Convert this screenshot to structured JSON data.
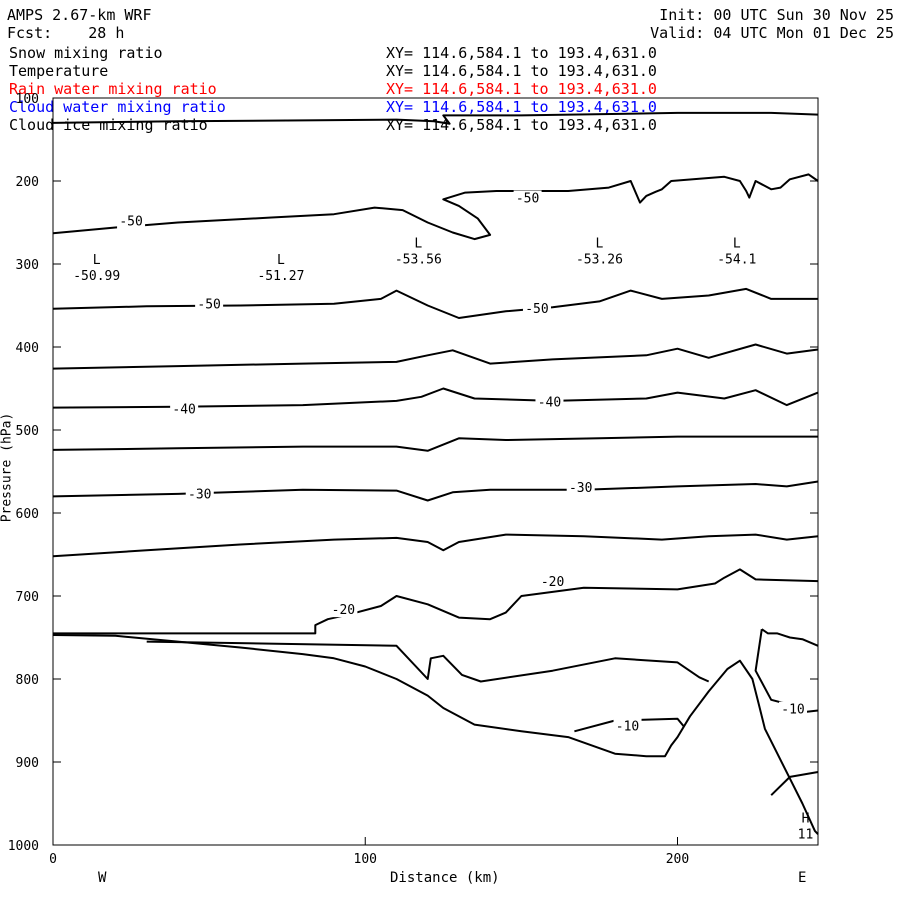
{
  "header": {
    "model": "AMPS 2.67-km WRF",
    "forecast": "Fcst:    28 h",
    "init": "Init: 00 UTC Sun 30 Nov 25",
    "valid": "Valid: 04 UTC Mon 01 Dec 25"
  },
  "layers": [
    {
      "name": "Snow mixing ratio",
      "xy": "XY= 114.6,584.1 to 193.4,631.0",
      "color": "#000000"
    },
    {
      "name": "Temperature",
      "xy": "XY= 114.6,584.1 to 193.4,631.0",
      "color": "#000000"
    },
    {
      "name": "Rain water mixing ratio",
      "xy": "XY= 114.6,584.1 to 193.4,631.0",
      "color": "#ff0000"
    },
    {
      "name": "Cloud water mixing ratio",
      "xy": "XY= 114.6,584.1 to 193.4,631.0",
      "color": "#0000ff"
    },
    {
      "name": "Cloud ice mixing ratio",
      "xy": "XY= 114.6,584.1 to 193.4,631.0",
      "color": "#000000"
    }
  ],
  "axes": {
    "xlabel": "Distance (km)",
    "ylabel": "Pressure (hPa)",
    "west": "W",
    "east": "E"
  },
  "chart_data": {
    "type": "line",
    "xlim": [
      0,
      245
    ],
    "ylim": [
      1000,
      100
    ],
    "x_ticks": [
      0,
      100,
      200
    ],
    "y_ticks": [
      100,
      200,
      300,
      400,
      500,
      600,
      700,
      800,
      900,
      1000
    ],
    "grid": false,
    "contour_labels": [
      {
        "text": "-50",
        "x": 25,
        "p": 249
      },
      {
        "text": "-50",
        "x": 152,
        "p": 221
      },
      {
        "text": "-50",
        "x": 50,
        "p": 349
      },
      {
        "text": "-50",
        "x": 155,
        "p": 354
      },
      {
        "text": "-40",
        "x": 42,
        "p": 475
      },
      {
        "text": "-40",
        "x": 159,
        "p": 467
      },
      {
        "text": "-30",
        "x": 47,
        "p": 578
      },
      {
        "text": "-30",
        "x": 169,
        "p": 570
      },
      {
        "text": "-20",
        "x": 93,
        "p": 717
      },
      {
        "text": "-20",
        "x": 160,
        "p": 683
      },
      {
        "text": "-10",
        "x": 184,
        "p": 857
      },
      {
        "text": "-10",
        "x": 237,
        "p": 837
      }
    ],
    "extrema": [
      {
        "type": "L",
        "value": "-50.99",
        "x": 14,
        "p": 312
      },
      {
        "type": "L",
        "value": "-51.27",
        "x": 73,
        "p": 312
      },
      {
        "type": "L",
        "value": "-53.56",
        "x": 117,
        "p": 292
      },
      {
        "type": "L",
        "value": "-53.26",
        "x": 175,
        "p": 292
      },
      {
        "type": "L",
        "value": "-54.1",
        "x": 219,
        "p": 292
      },
      {
        "type": "H",
        "value": "11",
        "x": 241,
        "p": 985
      }
    ],
    "series": [
      {
        "values": [
          [
            0,
            130
          ],
          [
            40,
            128
          ],
          [
            80,
            127
          ],
          [
            110,
            126
          ],
          [
            122,
            128
          ],
          [
            127,
            131
          ],
          [
            125,
            121
          ],
          [
            150,
            121
          ],
          [
            200,
            118
          ],
          [
            230,
            118
          ],
          [
            245,
            120
          ]
        ]
      },
      {
        "values": [
          [
            0,
            263
          ],
          [
            20,
            256
          ],
          [
            40,
            250
          ],
          [
            70,
            244
          ],
          [
            90,
            240
          ],
          [
            103,
            232
          ],
          [
            112,
            235
          ],
          [
            120,
            250
          ],
          [
            128,
            262
          ],
          [
            135,
            270
          ],
          [
            140,
            265
          ],
          [
            136,
            245
          ],
          [
            130,
            230
          ],
          [
            125,
            222
          ],
          [
            132,
            214
          ],
          [
            142,
            212
          ],
          [
            165,
            212
          ],
          [
            178,
            208
          ],
          [
            185,
            200
          ],
          [
            188,
            226
          ],
          [
            190,
            218
          ],
          [
            193,
            213
          ],
          [
            195,
            210
          ],
          [
            198,
            200
          ],
          [
            205,
            198
          ],
          [
            215,
            195
          ],
          [
            220,
            200
          ],
          [
            222,
            212
          ],
          [
            223,
            220
          ],
          [
            225,
            200
          ],
          [
            230,
            210
          ],
          [
            233,
            208
          ],
          [
            236,
            198
          ],
          [
            242,
            192
          ],
          [
            245,
            200
          ]
        ]
      },
      {
        "values": [
          [
            0,
            354
          ],
          [
            30,
            351
          ],
          [
            60,
            350
          ],
          [
            90,
            348
          ],
          [
            105,
            342
          ],
          [
            110,
            332
          ],
          [
            120,
            350
          ],
          [
            130,
            365
          ],
          [
            145,
            357
          ],
          [
            160,
            352
          ],
          [
            175,
            345
          ],
          [
            185,
            332
          ],
          [
            195,
            342
          ],
          [
            210,
            338
          ],
          [
            222,
            330
          ],
          [
            230,
            342
          ],
          [
            245,
            342
          ]
        ]
      },
      {
        "values": [
          [
            0,
            426
          ],
          [
            40,
            423
          ],
          [
            80,
            420
          ],
          [
            110,
            418
          ],
          [
            120,
            410
          ],
          [
            128,
            404
          ],
          [
            140,
            420
          ],
          [
            160,
            415
          ],
          [
            190,
            410
          ],
          [
            200,
            402
          ],
          [
            210,
            413
          ],
          [
            225,
            397
          ],
          [
            235,
            408
          ],
          [
            245,
            403
          ]
        ]
      },
      {
        "values": [
          [
            0,
            473
          ],
          [
            40,
            472
          ],
          [
            80,
            470
          ],
          [
            110,
            465
          ],
          [
            118,
            460
          ],
          [
            125,
            450
          ],
          [
            135,
            462
          ],
          [
            160,
            465
          ],
          [
            190,
            462
          ],
          [
            200,
            455
          ],
          [
            215,
            462
          ],
          [
            225,
            452
          ],
          [
            235,
            470
          ],
          [
            245,
            455
          ]
        ]
      },
      {
        "values": [
          [
            0,
            524
          ],
          [
            40,
            522
          ],
          [
            80,
            520
          ],
          [
            110,
            520
          ],
          [
            120,
            525
          ],
          [
            130,
            510
          ],
          [
            145,
            512
          ],
          [
            175,
            510
          ],
          [
            200,
            508
          ],
          [
            230,
            508
          ],
          [
            245,
            508
          ]
        ]
      },
      {
        "values": [
          [
            0,
            580
          ],
          [
            40,
            577
          ],
          [
            80,
            572
          ],
          [
            110,
            573
          ],
          [
            120,
            585
          ],
          [
            128,
            575
          ],
          [
            140,
            572
          ],
          [
            170,
            572
          ],
          [
            200,
            568
          ],
          [
            225,
            565
          ],
          [
            235,
            568
          ],
          [
            245,
            562
          ]
        ]
      },
      {
        "values": [
          [
            0,
            652
          ],
          [
            30,
            645
          ],
          [
            60,
            638
          ],
          [
            90,
            632
          ],
          [
            110,
            630
          ],
          [
            120,
            635
          ],
          [
            125,
            645
          ],
          [
            130,
            635
          ],
          [
            145,
            626
          ],
          [
            170,
            628
          ],
          [
            195,
            632
          ],
          [
            210,
            628
          ],
          [
            225,
            626
          ],
          [
            235,
            632
          ],
          [
            245,
            628
          ]
        ]
      },
      {
        "values": [
          [
            0,
            745
          ],
          [
            84,
            745
          ],
          [
            84,
            735
          ],
          [
            88,
            728
          ],
          [
            95,
            722
          ],
          [
            105,
            712
          ],
          [
            110,
            700
          ],
          [
            120,
            710
          ],
          [
            130,
            726
          ],
          [
            140,
            728
          ],
          [
            145,
            720
          ],
          [
            150,
            700
          ],
          [
            170,
            690
          ],
          [
            200,
            692
          ],
          [
            212,
            685
          ],
          [
            215,
            678
          ],
          [
            220,
            668
          ],
          [
            225,
            680
          ],
          [
            245,
            682
          ]
        ]
      },
      {
        "values": [
          [
            0,
            747
          ],
          [
            20,
            748
          ],
          [
            40,
            755
          ],
          [
            60,
            762
          ],
          [
            80,
            770
          ],
          [
            90,
            775
          ],
          [
            100,
            785
          ],
          [
            110,
            800
          ],
          [
            120,
            820
          ],
          [
            125,
            835
          ],
          [
            135,
            855
          ],
          [
            150,
            863
          ],
          [
            165,
            870
          ],
          [
            180,
            890
          ],
          [
            190,
            893
          ],
          [
            196,
            893
          ],
          [
            198,
            880
          ],
          [
            200,
            870
          ],
          [
            204,
            845
          ],
          [
            210,
            815
          ],
          [
            216,
            788
          ],
          [
            220,
            778
          ],
          [
            224,
            800
          ],
          [
            226,
            830
          ],
          [
            228,
            860
          ],
          [
            232,
            890
          ],
          [
            236,
            920
          ],
          [
            240,
            950
          ],
          [
            244,
            983
          ],
          [
            245,
            987
          ]
        ]
      },
      {
        "values": [
          [
            30,
            755
          ],
          [
            110,
            760
          ],
          [
            120,
            800
          ],
          [
            121,
            775
          ],
          [
            125,
            772
          ],
          [
            131,
            795
          ],
          [
            137,
            803
          ],
          [
            160,
            790
          ],
          [
            180,
            775
          ],
          [
            200,
            780
          ],
          [
            207,
            798
          ],
          [
            210,
            803
          ]
        ]
      },
      {
        "values": [
          [
            227,
            740
          ],
          [
            229,
            745
          ],
          [
            232,
            745
          ],
          [
            236,
            750
          ],
          [
            240,
            752
          ],
          [
            245,
            760
          ]
        ]
      },
      {
        "values": [
          [
            227,
            740
          ],
          [
            225,
            790
          ],
          [
            230,
            825
          ],
          [
            235,
            830
          ],
          [
            240,
            840
          ],
          [
            245,
            838
          ]
        ]
      },
      {
        "values": [
          [
            167,
            863
          ],
          [
            180,
            850
          ],
          [
            200,
            848
          ],
          [
            202,
            857
          ]
        ]
      },
      {
        "values": [
          [
            230,
            940
          ],
          [
            236,
            918
          ],
          [
            245,
            912
          ]
        ]
      }
    ]
  }
}
